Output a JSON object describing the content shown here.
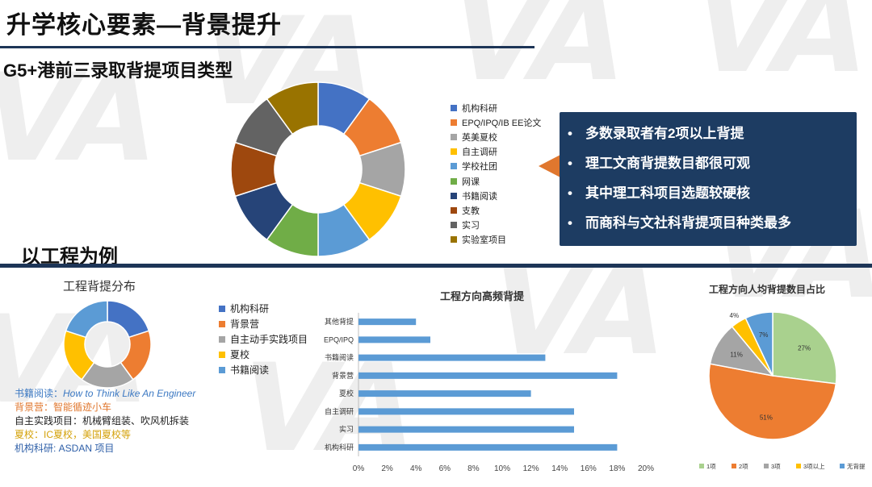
{
  "watermark": {
    "text": "VA"
  },
  "slide": {
    "title": "升学核心要素—背景提升",
    "subtitle_top": "G5+港前三录取背提项目类型",
    "subtitle_bottom": "以工程为例"
  },
  "callout": {
    "bullet_glyph": "•",
    "points": [
      "多数录取者有2项以上背提",
      "理工文商背提数目都很可观",
      "其中理工科项目选题较硬核",
      "而商科与文社科背提项目种类最多"
    ]
  },
  "notes": [
    {
      "label": "书籍阅读：",
      "value": "How to Think Like An Engineer",
      "label_color": "#3b78c2",
      "value_color": "#3b78c2",
      "italic": true
    },
    {
      "label": "背景营：",
      "value": "智能循迹小车",
      "label_color": "#e0772e",
      "value_color": "#e0772e",
      "italic": false
    },
    {
      "label": "自主实践项目：",
      "value": "机械臂组装、吹风机拆装",
      "label_color": "#222222",
      "value_color": "#222222",
      "italic": false
    },
    {
      "label": "夏校：",
      "value": "IC夏校，美国夏校等",
      "label_color": "#d4a20a",
      "value_color": "#d4a20a",
      "italic": false
    },
    {
      "label": "机构科研: ",
      "value": "ASDAN 项目",
      "label_color": "#2e5fa8",
      "value_color": "#2e5fa8",
      "italic": false
    }
  ],
  "chart_data": [
    {
      "type": "pie",
      "variant": "donut",
      "title": "",
      "categories": [
        "机构科研",
        "EPQ/IPQ/IB EE论文",
        "英美夏校",
        "自主调研",
        "学校社团",
        "网课",
        "书籍阅读",
        "支教",
        "实习",
        "实验室项目"
      ],
      "values": [
        10,
        10,
        10,
        10,
        10,
        10,
        10,
        10,
        10,
        10
      ],
      "colors": [
        "#4472c4",
        "#ed7d31",
        "#a5a5a5",
        "#ffc000",
        "#5b9bd5",
        "#70ad47",
        "#264478",
        "#9e480e",
        "#636363",
        "#997300"
      ],
      "legend": "right"
    },
    {
      "type": "pie",
      "variant": "donut",
      "title": "工程背提分布",
      "categories": [
        "机构科研",
        "背景营",
        "自主动手实践项目",
        "夏校",
        "书籍阅读"
      ],
      "values": [
        20,
        20,
        20,
        20,
        20
      ],
      "colors": [
        "#4472c4",
        "#ed7d31",
        "#a5a5a5",
        "#ffc000",
        "#5b9bd5"
      ],
      "legend": "right"
    },
    {
      "type": "bar",
      "orientation": "horizontal",
      "title": "工程方向高频背提",
      "categories": [
        "其他背提",
        "EPQ/IPQ",
        "书籍阅读",
        "背景营",
        "夏校",
        "自主调研",
        "实习",
        "机构科研"
      ],
      "values": [
        4,
        5,
        13,
        18,
        12,
        15,
        15,
        18
      ],
      "xlim": [
        0,
        20
      ],
      "xticks": [
        "0%",
        "2%",
        "4%",
        "6%",
        "8%",
        "10%",
        "12%",
        "14%",
        "16%",
        "18%",
        "20%"
      ],
      "unit": "%",
      "color": "#5b9bd5",
      "grid": false
    },
    {
      "type": "pie",
      "title": "工程方向人均背提数目占比",
      "categories": [
        "1项",
        "2项",
        "3项",
        "3项以上",
        "无背提"
      ],
      "values": [
        27,
        51,
        11,
        4,
        7
      ],
      "labels": [
        "27%",
        "51%",
        "11%",
        "4%",
        "7%"
      ],
      "colors": [
        "#a9d18e",
        "#ed7d31",
        "#a5a5a5",
        "#ffc000",
        "#5b9bd5"
      ],
      "legend": "bottom"
    }
  ]
}
